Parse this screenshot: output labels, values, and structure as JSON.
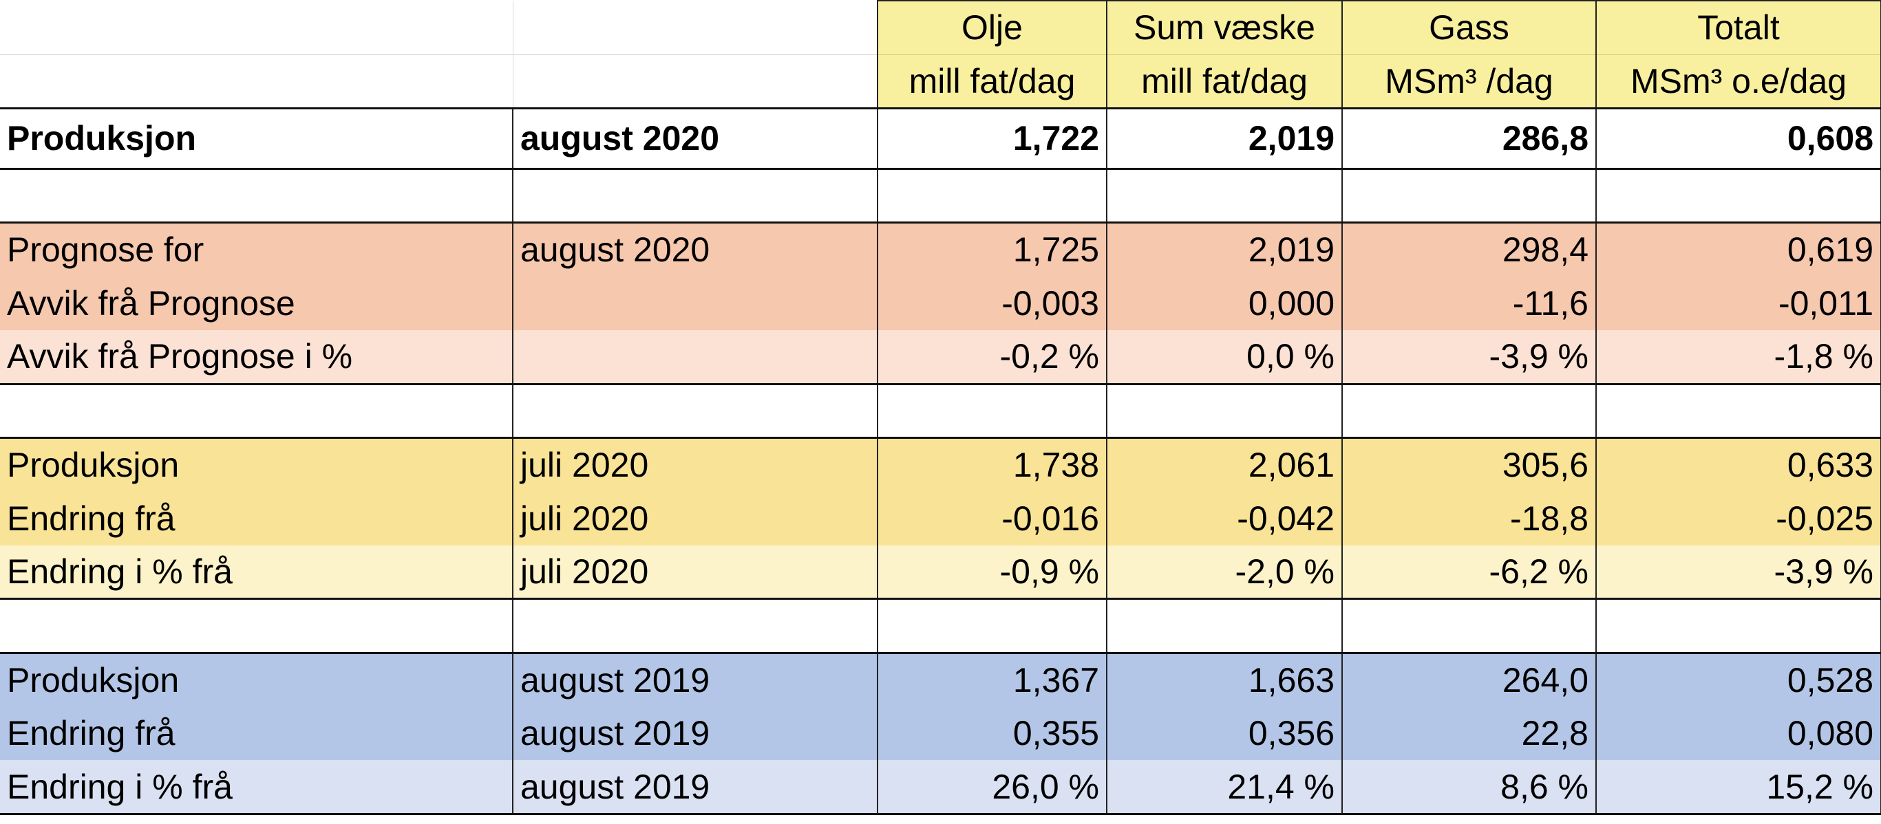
{
  "header": {
    "columns": [
      {
        "name": "Olje",
        "unit": "mill fat/dag"
      },
      {
        "name": "Sum væske",
        "unit": "mill fat/dag"
      },
      {
        "name": "Gass",
        "unit": "MSm³ /dag"
      },
      {
        "name": "Totalt",
        "unit": "MSm³ o.e/dag"
      }
    ]
  },
  "main_row": {
    "label": "Produksjon",
    "period": "august 2020",
    "values": [
      "1,722",
      "2,019",
      "286,8",
      "0,608"
    ]
  },
  "forecast": [
    {
      "label": "Prognose for",
      "period": "august 2020",
      "values": [
        "1,725",
        "2,019",
        "298,4",
        "0,619"
      ]
    },
    {
      "label": "Avvik frå Prognose",
      "period": "",
      "values": [
        "-0,003",
        "0,000",
        "-11,6",
        "-0,011"
      ]
    },
    {
      "label": "Avvik frå Prognose i %",
      "period": "",
      "values": [
        "-0,2 %",
        "0,0 %",
        "-3,9 %",
        "-1,8 %"
      ]
    }
  ],
  "previous_month": [
    {
      "label": "Produksjon",
      "period": "juli 2020",
      "values": [
        "1,738",
        "2,061",
        "305,6",
        "0,633"
      ]
    },
    {
      "label": "Endring frå",
      "period": "juli 2020",
      "values": [
        "-0,016",
        "-0,042",
        "-18,8",
        "-0,025"
      ]
    },
    {
      "label": "Endring i % frå",
      "period": "juli 2020",
      "values": [
        "-0,9 %",
        "-2,0 %",
        "-6,2 %",
        "-3,9 %"
      ]
    }
  ],
  "previous_year": [
    {
      "label": "Produksjon",
      "period": "august 2019",
      "values": [
        "1,367",
        "1,663",
        "264,0",
        "0,528"
      ]
    },
    {
      "label": "Endring frå",
      "period": "august 2019",
      "values": [
        "0,355",
        "0,356",
        "22,8",
        "0,080"
      ]
    },
    {
      "label": "Endring i % frå",
      "period": "august 2019",
      "values": [
        "26,0 %",
        "21,4 %",
        "8,6 %",
        "15,2 %"
      ]
    }
  ],
  "colors": {
    "header": "#f8ef9f",
    "forecast": "#f6c8ae",
    "forecast_light": "#fbe2d5",
    "prev_month": "#f9e396",
    "prev_month_light": "#fdf3ca",
    "prev_year": "#b4c6e7",
    "prev_year_light": "#d9e1f2"
  }
}
